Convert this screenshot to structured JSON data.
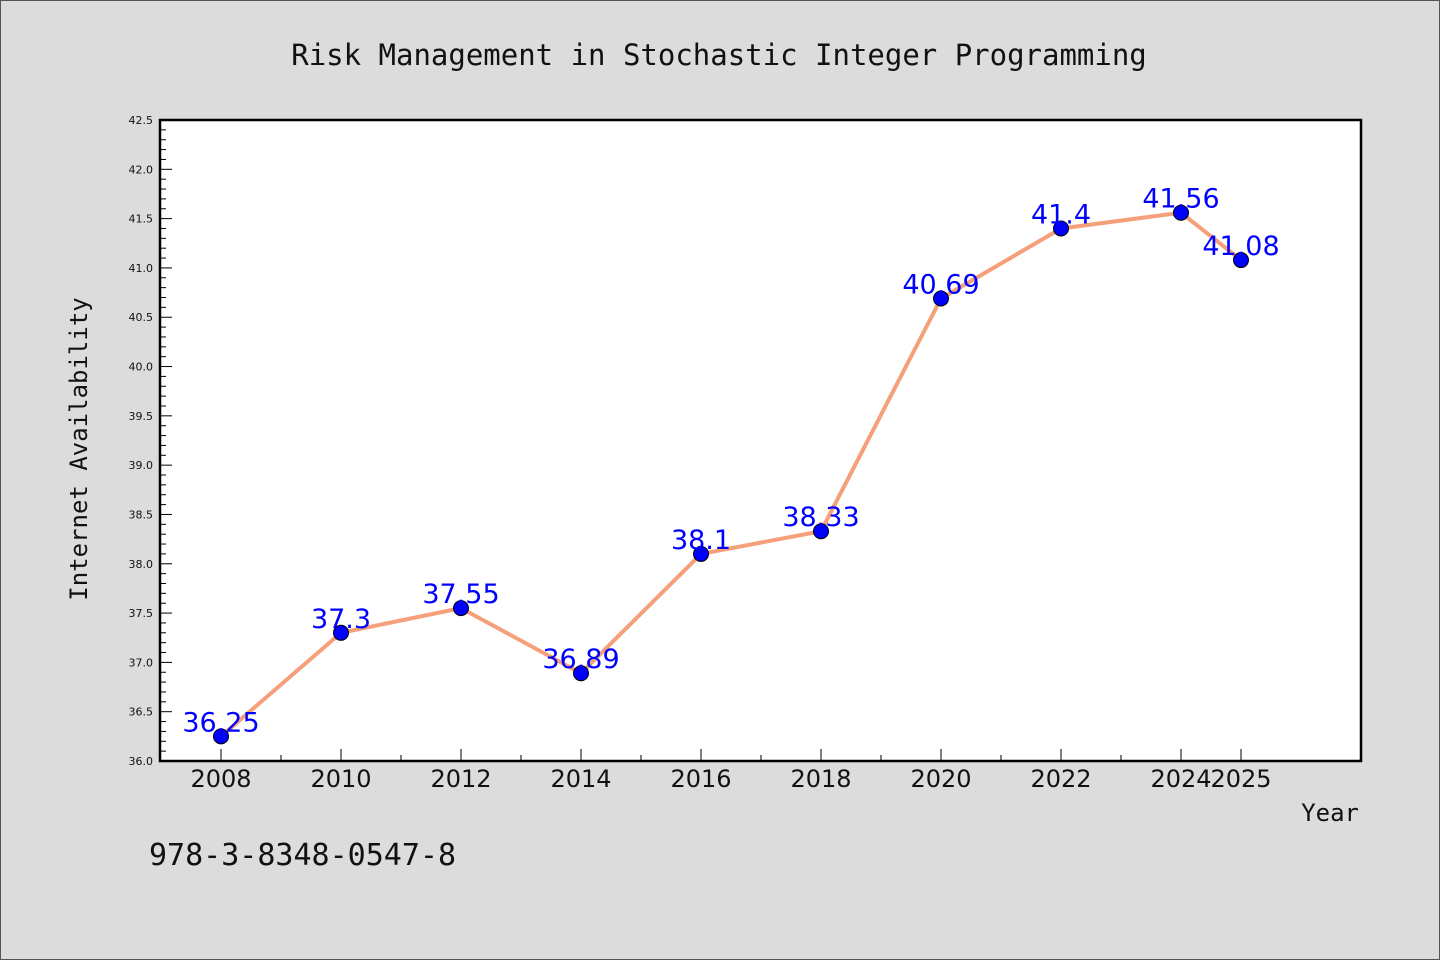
{
  "chart_data": {
    "type": "line",
    "title": "Risk Management in Stochastic Integer Programming",
    "xlabel": "Year",
    "ylabel": "Internet Availability",
    "x": [
      "2008",
      "2010",
      "2012",
      "2014",
      "2016",
      "2018",
      "2020",
      "2022",
      "2024",
      "2025"
    ],
    "values": [
      36.25,
      37.3,
      37.55,
      36.89,
      38.1,
      38.33,
      40.69,
      41.4,
      41.56,
      41.08
    ],
    "data_labels": [
      "36.25",
      "37.3",
      "37.55",
      "36.89",
      "38.1",
      "38.33",
      "40.69",
      "41.4",
      "41.56",
      "41.08"
    ],
    "ylim": [
      36.0,
      42.5
    ],
    "yticks": [
      "36.0",
      "36.5",
      "37.0",
      "37.5",
      "38.0",
      "38.5",
      "39.0",
      "39.5",
      "40.0",
      "40.5",
      "41.0",
      "41.5",
      "42.0",
      "42.5"
    ],
    "grid": false,
    "line_color": "#f5a07a",
    "marker_color": "#0000ff",
    "label_color": "#0000ff"
  },
  "footer": {
    "isbn": "978-3-8348-0547-8"
  }
}
